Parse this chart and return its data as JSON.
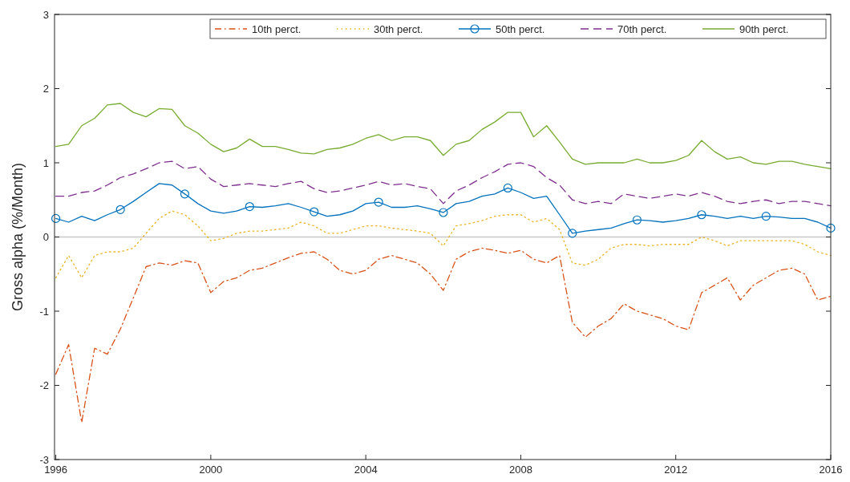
{
  "chart_data": {
    "type": "line",
    "ylabel": "Gross alpha (%/Month)",
    "xlim": [
      "1995-12-20",
      "2016-01-01"
    ],
    "ylim": [
      -3,
      3
    ],
    "yticks": [
      -3,
      -2,
      -1,
      0,
      1,
      2,
      3
    ],
    "xticks": [
      {
        "value": "1996",
        "label": "1996"
      },
      {
        "value": "2000",
        "label": "2000"
      },
      {
        "value": "2004",
        "label": "2004"
      },
      {
        "value": "2008",
        "label": "2008"
      },
      {
        "value": "2012",
        "label": "2012"
      },
      {
        "value": "2016",
        "label": "2016"
      }
    ],
    "legend": "top right",
    "grid": false,
    "ref_lines": [
      {
        "axis": "y",
        "value": 0,
        "color": "#c8c8c8"
      }
    ],
    "x": [
      "1996-01",
      "1996-05",
      "1996-09",
      "1997-01",
      "1997-05",
      "1997-09",
      "1998-01",
      "1998-05",
      "1998-09",
      "1999-01",
      "1999-05",
      "1999-09",
      "2000-01",
      "2000-05",
      "2000-09",
      "2001-01",
      "2001-05",
      "2001-09",
      "2002-01",
      "2002-05",
      "2002-09",
      "2003-01",
      "2003-05",
      "2003-09",
      "2004-01",
      "2004-05",
      "2004-09",
      "2005-01",
      "2005-05",
      "2005-09",
      "2006-01",
      "2006-05",
      "2006-09",
      "2007-01",
      "2007-05",
      "2007-09",
      "2008-01",
      "2008-05",
      "2008-09",
      "2009-01",
      "2009-05",
      "2009-09",
      "2010-01",
      "2010-05",
      "2010-09",
      "2011-01",
      "2011-05",
      "2011-09",
      "2012-01",
      "2012-05",
      "2012-09",
      "2013-01",
      "2013-05",
      "2013-09",
      "2014-01",
      "2014-05",
      "2014-09",
      "2015-01",
      "2015-05",
      "2015-09",
      "2016-01"
    ],
    "series": [
      {
        "name": "10th perct.",
        "color": "#d95319",
        "line_style": "dashdot",
        "marker": "none",
        "values": [
          -1.85,
          -1.45,
          -2.5,
          -1.5,
          -1.58,
          -1.24,
          -0.82,
          -0.4,
          -0.35,
          -0.38,
          -0.32,
          -0.35,
          -0.75,
          -0.6,
          -0.55,
          -0.45,
          -0.42,
          -0.35,
          -0.28,
          -0.22,
          -0.2,
          -0.3,
          -0.45,
          -0.5,
          -0.45,
          -0.3,
          -0.25,
          -0.3,
          -0.35,
          -0.5,
          -0.72,
          -0.3,
          -0.2,
          -0.15,
          -0.18,
          -0.22,
          -0.18,
          -0.3,
          -0.35,
          -0.25,
          -1.15,
          -1.35,
          -1.2,
          -1.1,
          -0.9,
          -1.0,
          -1.05,
          -1.1,
          -1.2,
          -1.25,
          -0.75,
          -0.65,
          -0.55,
          -0.85,
          -0.65,
          -0.55,
          -0.45,
          -0.42,
          -0.5,
          -0.85,
          -0.8
        ]
      },
      {
        "name": "30th perct.",
        "color": "#edb120",
        "line_style": "dotted",
        "marker": "none",
        "values": [
          -0.55,
          -0.25,
          -0.55,
          -0.25,
          -0.2,
          -0.2,
          -0.15,
          0.05,
          0.25,
          0.35,
          0.3,
          0.15,
          -0.05,
          -0.02,
          0.05,
          0.08,
          0.08,
          0.1,
          0.12,
          0.2,
          0.15,
          0.05,
          0.05,
          0.1,
          0.15,
          0.15,
          0.12,
          0.1,
          0.08,
          0.05,
          -0.12,
          0.15,
          0.18,
          0.22,
          0.28,
          0.3,
          0.3,
          0.2,
          0.25,
          0.1,
          -0.35,
          -0.38,
          -0.3,
          -0.15,
          -0.1,
          -0.1,
          -0.12,
          -0.1,
          -0.1,
          -0.1,
          0.0,
          -0.05,
          -0.12,
          -0.05,
          -0.05,
          -0.05,
          -0.05,
          -0.05,
          -0.1,
          -0.2,
          -0.25
        ]
      },
      {
        "name": "50th perct.",
        "color": "#0072bd",
        "line_style": "solid",
        "marker": "none",
        "values": [
          0.25,
          0.2,
          0.28,
          0.22,
          0.3,
          0.37,
          0.48,
          0.6,
          0.72,
          0.7,
          0.58,
          0.45,
          0.35,
          0.32,
          0.35,
          0.41,
          0.4,
          0.42,
          0.45,
          0.4,
          0.34,
          0.28,
          0.3,
          0.35,
          0.45,
          0.47,
          0.4,
          0.4,
          0.42,
          0.38,
          0.33,
          0.45,
          0.48,
          0.55,
          0.58,
          0.66,
          0.6,
          0.52,
          0.55,
          0.3,
          0.05,
          0.08,
          0.1,
          0.12,
          0.18,
          0.23,
          0.22,
          0.2,
          0.22,
          0.25,
          0.3,
          0.28,
          0.25,
          0.28,
          0.25,
          0.28,
          0.27,
          0.25,
          0.25,
          0.2,
          0.12
        ]
      },
      {
        "type": "scatter",
        "color": "#0072bd",
        "marker": "circle",
        "x": [
          "1996-01",
          "1997-09",
          "1999-05",
          "2001-01",
          "2002-09",
          "2004-05",
          "2006-01",
          "2007-09",
          "2009-05",
          "2011-01",
          "2012-09",
          "2014-05",
          "2016-01"
        ],
        "values": [
          0.25,
          0.37,
          0.58,
          0.41,
          0.34,
          0.47,
          0.33,
          0.66,
          0.05,
          0.23,
          0.3,
          0.28,
          0.12
        ]
      },
      {
        "name": "70th perct.",
        "color": "#7e2f8e",
        "line_style": "dashed",
        "marker": "none",
        "values": [
          0.55,
          0.55,
          0.6,
          0.62,
          0.7,
          0.8,
          0.85,
          0.92,
          1.0,
          1.02,
          0.92,
          0.95,
          0.78,
          0.68,
          0.7,
          0.72,
          0.7,
          0.68,
          0.72,
          0.75,
          0.65,
          0.6,
          0.62,
          0.66,
          0.7,
          0.75,
          0.7,
          0.72,
          0.68,
          0.65,
          0.45,
          0.62,
          0.7,
          0.8,
          0.88,
          0.98,
          1.0,
          0.95,
          0.8,
          0.7,
          0.5,
          0.45,
          0.48,
          0.45,
          0.58,
          0.55,
          0.52,
          0.55,
          0.58,
          0.55,
          0.6,
          0.55,
          0.48,
          0.45,
          0.48,
          0.5,
          0.45,
          0.48,
          0.48,
          0.45,
          0.42
        ]
      },
      {
        "name": "90th perct.",
        "color": "#77ac30",
        "line_style": "solid",
        "marker": "none",
        "values": [
          1.22,
          1.25,
          1.5,
          1.6,
          1.78,
          1.8,
          1.68,
          1.62,
          1.73,
          1.72,
          1.5,
          1.4,
          1.25,
          1.15,
          1.2,
          1.32,
          1.22,
          1.22,
          1.18,
          1.13,
          1.12,
          1.18,
          1.2,
          1.25,
          1.33,
          1.38,
          1.3,
          1.35,
          1.35,
          1.3,
          1.1,
          1.25,
          1.3,
          1.45,
          1.55,
          1.68,
          1.68,
          1.35,
          1.5,
          1.28,
          1.05,
          0.98,
          1.0,
          1.0,
          1.0,
          1.05,
          1.0,
          1.0,
          1.03,
          1.1,
          1.3,
          1.15,
          1.05,
          1.08,
          1.0,
          0.98,
          1.02,
          1.02,
          0.98,
          0.95,
          0.92
        ]
      }
    ]
  }
}
